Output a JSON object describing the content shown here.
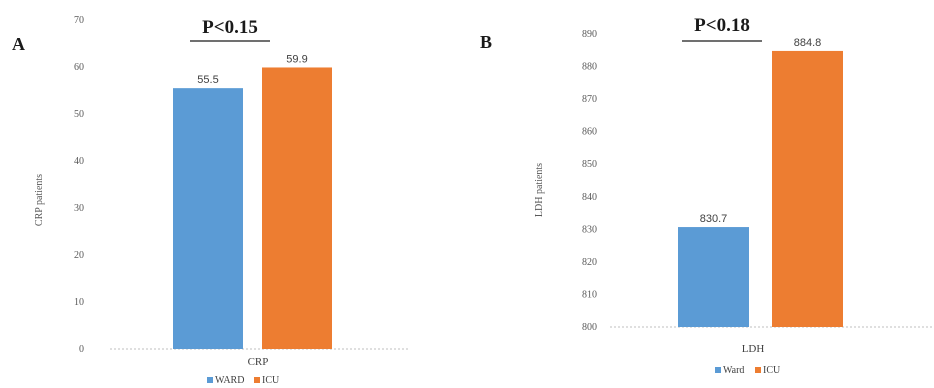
{
  "colors": {
    "series1": "#5b9bd5",
    "series2": "#ed7d31",
    "axis": "#bfbfbf",
    "text": "#404040"
  },
  "chart_data": [
    {
      "type": "bar",
      "panel_label": "A",
      "annotation": "P<0.15",
      "title": "",
      "xlabel": "",
      "ylabel": "CRP patients",
      "categories": [
        "CRP"
      ],
      "ylim": [
        0,
        70
      ],
      "yticks": [
        0,
        10,
        20,
        30,
        40,
        50,
        60,
        70
      ],
      "series": [
        {
          "name": "WARD",
          "values": [
            55.5
          ],
          "label": "55.5"
        },
        {
          "name": "ICU",
          "values": [
            59.9
          ],
          "label": "59.9"
        }
      ],
      "legend": "bottom",
      "grid": false
    },
    {
      "type": "bar",
      "panel_label": "B",
      "annotation": "P<0.18",
      "title": "",
      "xlabel": "",
      "ylabel": "LDH patients",
      "categories": [
        "LDH"
      ],
      "ylim": [
        800,
        890
      ],
      "yticks": [
        800,
        810,
        820,
        830,
        840,
        850,
        860,
        870,
        880,
        890
      ],
      "series": [
        {
          "name": "Ward",
          "values": [
            830.7
          ],
          "label": "830.7"
        },
        {
          "name": "ICU",
          "values": [
            884.8
          ],
          "label": "884.8"
        }
      ],
      "legend": "bottom",
      "grid": false
    }
  ]
}
